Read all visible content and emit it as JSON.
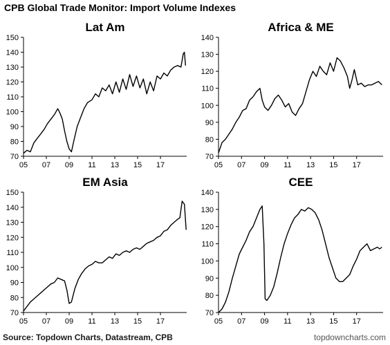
{
  "title": "CPB Global Trade Monitor: Import Volume Indexes",
  "source": "Source: Topdown Charts, Datastream, CPB",
  "watermark": "topdowncharts.com",
  "line_color": "#000000",
  "chart_data": [
    {
      "type": "line",
      "title": "Lat Am",
      "xlabel": "",
      "ylabel": "",
      "x_range": [
        2005,
        2019.3
      ],
      "x_ticks": [
        "05",
        "07",
        "09",
        "11",
        "13",
        "15",
        "17"
      ],
      "x_tick_values": [
        2005,
        2007,
        2009,
        2011,
        2013,
        2015,
        2017
      ],
      "ylim": [
        70,
        150
      ],
      "y_ticks": [
        70,
        80,
        90,
        100,
        110,
        120,
        130,
        140,
        150
      ],
      "grid": false,
      "x": [
        2005.0,
        2005.3,
        2005.6,
        2005.9,
        2006.2,
        2006.5,
        2006.8,
        2007.1,
        2007.4,
        2007.7,
        2008.0,
        2008.2,
        2008.4,
        2008.6,
        2008.8,
        2009.0,
        2009.2,
        2009.4,
        2009.7,
        2010.0,
        2010.3,
        2010.6,
        2011.0,
        2011.3,
        2011.6,
        2011.9,
        2012.2,
        2012.5,
        2012.8,
        2013.1,
        2013.4,
        2013.7,
        2014.0,
        2014.3,
        2014.6,
        2014.9,
        2015.2,
        2015.5,
        2015.8,
        2016.1,
        2016.4,
        2016.7,
        2017.0,
        2017.3,
        2017.6,
        2017.9,
        2018.2,
        2018.5,
        2018.8,
        2019.0,
        2019.1,
        2019.2
      ],
      "y": [
        72,
        74,
        73,
        79,
        82,
        85,
        88,
        92,
        95,
        98,
        102,
        99,
        95,
        87,
        80,
        75,
        73,
        80,
        90,
        96,
        102,
        106,
        108,
        112,
        110,
        116,
        114,
        118,
        112,
        120,
        113,
        122,
        115,
        125,
        117,
        124,
        116,
        122,
        112,
        120,
        114,
        124,
        122,
        126,
        124,
        128,
        130,
        131,
        130,
        139,
        140,
        131
      ]
    },
    {
      "type": "line",
      "title": "Africa & ME",
      "xlabel": "",
      "ylabel": "",
      "x_range": [
        2005,
        2019.3
      ],
      "x_ticks": [
        "05",
        "07",
        "09",
        "11",
        "13",
        "15",
        "17"
      ],
      "x_tick_values": [
        2005,
        2007,
        2009,
        2011,
        2013,
        2015,
        2017
      ],
      "ylim": [
        70,
        140
      ],
      "y_ticks": [
        70,
        80,
        90,
        100,
        110,
        120,
        130,
        140
      ],
      "grid": false,
      "x": [
        2005.0,
        2005.3,
        2005.6,
        2005.9,
        2006.2,
        2006.5,
        2006.8,
        2007.1,
        2007.4,
        2007.7,
        2008.0,
        2008.3,
        2008.6,
        2008.8,
        2009.0,
        2009.3,
        2009.6,
        2009.9,
        2010.2,
        2010.5,
        2010.8,
        2011.1,
        2011.4,
        2011.7,
        2012.0,
        2012.3,
        2012.6,
        2012.9,
        2013.2,
        2013.5,
        2013.8,
        2014.1,
        2014.4,
        2014.7,
        2015.0,
        2015.3,
        2015.6,
        2015.9,
        2016.2,
        2016.4,
        2016.6,
        2016.8,
        2017.1,
        2017.4,
        2017.7,
        2018.0,
        2018.3,
        2018.6,
        2018.9,
        2019.2
      ],
      "y": [
        72,
        78,
        80,
        83,
        86,
        90,
        93,
        97,
        98,
        103,
        105,
        108,
        110,
        103,
        99,
        97,
        100,
        104,
        106,
        103,
        99,
        101,
        96,
        94,
        98,
        101,
        108,
        115,
        120,
        117,
        123,
        120,
        118,
        125,
        120,
        128,
        126,
        122,
        117,
        110,
        115,
        121,
        112,
        113,
        111,
        112,
        112,
        113,
        114,
        112
      ]
    },
    {
      "type": "line",
      "title": "EM Asia",
      "xlabel": "",
      "ylabel": "",
      "x_range": [
        2005,
        2019.3
      ],
      "x_ticks": [
        "05",
        "07",
        "09",
        "11",
        "13",
        "15",
        "17"
      ],
      "x_tick_values": [
        2005,
        2007,
        2009,
        2011,
        2013,
        2015,
        2017
      ],
      "ylim": [
        70,
        150
      ],
      "y_ticks": [
        70,
        80,
        90,
        100,
        110,
        120,
        130,
        140,
        150
      ],
      "grid": false,
      "x": [
        2005.0,
        2005.3,
        2005.6,
        2005.9,
        2006.2,
        2006.5,
        2006.8,
        2007.1,
        2007.4,
        2007.7,
        2008.0,
        2008.3,
        2008.6,
        2008.8,
        2009.0,
        2009.2,
        2009.5,
        2009.8,
        2010.1,
        2010.4,
        2010.7,
        2011.0,
        2011.3,
        2011.6,
        2011.9,
        2012.2,
        2012.5,
        2012.8,
        2013.1,
        2013.4,
        2013.7,
        2014.0,
        2014.3,
        2014.6,
        2014.9,
        2015.2,
        2015.5,
        2015.8,
        2016.1,
        2016.4,
        2016.7,
        2017.0,
        2017.3,
        2017.6,
        2017.9,
        2018.2,
        2018.5,
        2018.7,
        2018.9,
        2019.1,
        2019.25
      ],
      "y": [
        71,
        74,
        77,
        79,
        81,
        83,
        85,
        87,
        89,
        90,
        93,
        92,
        91,
        85,
        76,
        77,
        86,
        92,
        96,
        99,
        101,
        102,
        104,
        103,
        103,
        105,
        107,
        106,
        109,
        108,
        110,
        111,
        110,
        112,
        113,
        112,
        114,
        116,
        117,
        118,
        120,
        121,
        124,
        125,
        128,
        130,
        132,
        133,
        144,
        142,
        125
      ]
    },
    {
      "type": "line",
      "title": "CEE",
      "xlabel": "",
      "ylabel": "",
      "x_range": [
        2005,
        2019.3
      ],
      "x_ticks": [
        "05",
        "07",
        "09",
        "11",
        "13",
        "15",
        "17"
      ],
      "x_tick_values": [
        2005,
        2007,
        2009,
        2011,
        2013,
        2015,
        2017
      ],
      "ylim": [
        70,
        140
      ],
      "y_ticks": [
        70,
        80,
        90,
        100,
        110,
        120,
        130,
        140
      ],
      "grid": false,
      "x": [
        2005.0,
        2005.3,
        2005.6,
        2005.9,
        2006.2,
        2006.5,
        2006.8,
        2007.1,
        2007.4,
        2007.7,
        2008.0,
        2008.3,
        2008.6,
        2008.8,
        2008.95,
        2009.05,
        2009.2,
        2009.5,
        2009.8,
        2010.1,
        2010.4,
        2010.7,
        2011.0,
        2011.3,
        2011.6,
        2011.9,
        2012.2,
        2012.5,
        2012.8,
        2013.1,
        2013.4,
        2013.7,
        2014.0,
        2014.3,
        2014.6,
        2014.9,
        2015.2,
        2015.5,
        2015.8,
        2016.1,
        2016.4,
        2016.7,
        2017.0,
        2017.3,
        2017.6,
        2017.9,
        2018.2,
        2018.5,
        2018.8,
        2019.0,
        2019.2
      ],
      "y": [
        70,
        72,
        76,
        82,
        90,
        97,
        104,
        108,
        112,
        117,
        120,
        125,
        130,
        132,
        110,
        78,
        77,
        80,
        85,
        93,
        102,
        110,
        116,
        121,
        125,
        127,
        130,
        129,
        131,
        130,
        128,
        124,
        118,
        110,
        102,
        96,
        90,
        88,
        88,
        90,
        92,
        97,
        101,
        106,
        108,
        110,
        106,
        107,
        108,
        107,
        108
      ]
    }
  ]
}
